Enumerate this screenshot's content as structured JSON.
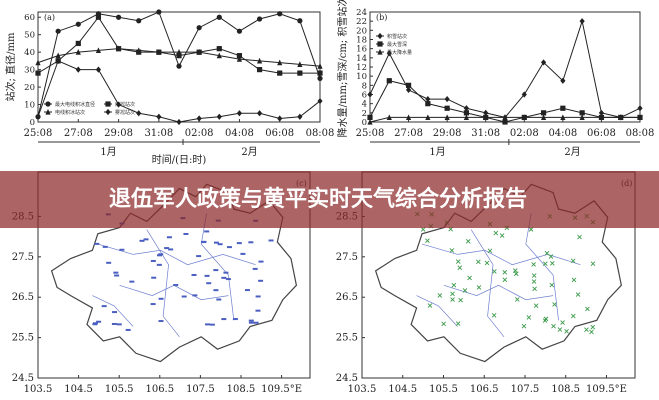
{
  "banner": {
    "title": "退伍军人政策与黄平实时天气综合分析报告"
  },
  "chart_data": [
    {
      "type": "line",
      "label": "(a)",
      "ylabel": "站次; 直径/mm",
      "xlabel": "时间/(日:时)",
      "month_labels": [
        "1月",
        "2月"
      ],
      "legend": "lower left",
      "x": [
        0,
        1,
        2,
        3,
        4,
        5,
        6,
        7,
        8,
        9,
        10,
        11,
        12,
        13,
        14
      ],
      "xlim": [
        0,
        14
      ],
      "xticks": [
        {
          "value": 0,
          "label": "25:08"
        },
        {
          "value": 2,
          "label": "27:08"
        },
        {
          "value": 4,
          "label": "29:08"
        },
        {
          "value": 6,
          "label": "31:08"
        },
        {
          "value": 8,
          "label": "02:08"
        },
        {
          "value": 10,
          "label": "04:08"
        },
        {
          "value": 12,
          "label": "06:08"
        },
        {
          "value": 14,
          "label": "08:08"
        }
      ],
      "ylim": [
        0,
        63
      ],
      "yticks": [
        0,
        10,
        20,
        30,
        40,
        50,
        60
      ],
      "series": [
        {
          "name": "最大电线积冰直径",
          "color": "#222",
          "marker": "circle",
          "values": [
            3,
            52,
            56,
            62,
            60,
            58,
            63,
            32,
            54,
            60,
            52,
            59,
            62,
            58,
            25
          ]
        },
        {
          "name": "雨凇站次",
          "color": "#222",
          "marker": "square",
          "values": [
            28,
            35,
            45,
            60,
            42,
            40,
            40,
            38,
            40,
            42,
            38,
            30,
            28,
            28,
            28
          ]
        },
        {
          "name": "电线积冰站次",
          "color": "#222",
          "marker": "triangle",
          "values": [
            34,
            38,
            40,
            41,
            42,
            41,
            40,
            40,
            40,
            38,
            36,
            35,
            34,
            33,
            32
          ]
        },
        {
          "name": "雾凇站次",
          "color": "#222",
          "marker": "diamond",
          "values": [
            3,
            35,
            30,
            30,
            10,
            5,
            3,
            0,
            2,
            3,
            5,
            5,
            2,
            3,
            12
          ]
        }
      ]
    },
    {
      "type": "line",
      "label": "(b)",
      "ylabel": "降水量/mm;雪深/cm; 积雪站次",
      "month_labels": [
        "1月",
        "2月"
      ],
      "legend": "upper left",
      "x": [
        0,
        1,
        2,
        3,
        4,
        5,
        6,
        7,
        8,
        9,
        10,
        11,
        12,
        13,
        14
      ],
      "xlim": [
        0,
        14
      ],
      "xticks": [
        {
          "value": 0,
          "label": "25:08"
        },
        {
          "value": 2,
          "label": "27:08"
        },
        {
          "value": 4,
          "label": "29:08"
        },
        {
          "value": 6,
          "label": "31:08"
        },
        {
          "value": 8,
          "label": "02:08"
        },
        {
          "value": 10,
          "label": "04:08"
        },
        {
          "value": 12,
          "label": "06:08"
        },
        {
          "value": 14,
          "label": "08:08"
        }
      ],
      "ylim": [
        0,
        24
      ],
      "yticks": [
        0,
        2,
        4,
        6,
        8,
        10,
        12,
        14,
        16,
        18,
        20,
        22,
        24
      ],
      "series": [
        {
          "name": "积雪站次",
          "color": "#222",
          "marker": "diamond",
          "values": [
            6,
            15,
            7,
            5,
            5,
            3,
            2,
            1,
            6,
            13,
            9,
            22,
            2,
            1,
            3
          ]
        },
        {
          "name": "最大雪深",
          "color": "#222",
          "marker": "square",
          "values": [
            1,
            9,
            8,
            4,
            3,
            2,
            1,
            0,
            1,
            2,
            3,
            2,
            1,
            1,
            1
          ]
        },
        {
          "name": "最大降水量",
          "color": "#222",
          "marker": "triangle",
          "values": [
            0,
            1,
            1,
            1,
            1,
            1,
            1,
            1,
            1,
            1,
            1,
            1,
            1,
            1,
            1
          ]
        }
      ]
    }
  ],
  "maps": [
    {
      "label": "(c)",
      "xlim": [
        103.5,
        110.2
      ],
      "ylim": [
        24.5,
        29.6
      ],
      "xticks": [
        103.5,
        104.5,
        105.5,
        106.5,
        107.5,
        108.5,
        {
          "value": 109.5,
          "label": "109.5°E"
        }
      ],
      "yticks": [
        24.5,
        25.5,
        26.5,
        27.5,
        28.5
      ]
    },
    {
      "label": "(d)",
      "xlim": [
        103.5,
        110.2
      ],
      "ylim": [
        24.5,
        29.6
      ],
      "xticks": [
        103.5,
        104.5,
        105.5,
        106.5,
        107.5,
        108.5,
        {
          "value": 109.5,
          "label": "109.5°E"
        }
      ],
      "yticks": [
        24.5,
        25.5,
        26.5,
        27.5,
        28.5
      ]
    }
  ]
}
